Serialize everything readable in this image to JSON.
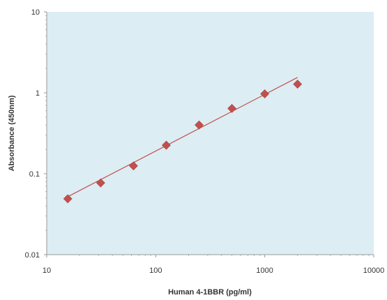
{
  "chart_data": {
    "type": "scatter",
    "title": "",
    "xlabel": "Human 4-1BBR (pg/ml)",
    "ylabel": "Absorbance (450nm)",
    "xscale": "log",
    "yscale": "log",
    "xlim": [
      10,
      10000
    ],
    "ylim": [
      0.01,
      10
    ],
    "x_tick_labels": [
      "10",
      "100",
      "1000",
      "10000"
    ],
    "y_tick_labels": [
      "0.01",
      "0.1",
      "1",
      "10"
    ],
    "grid": false,
    "legend": "none",
    "series": [
      {
        "marker": "diamond",
        "x": [
          15.6,
          31.25,
          62.5,
          125,
          250,
          500,
          1000,
          2000
        ],
        "y": [
          0.049,
          0.077,
          0.125,
          0.225,
          0.4,
          0.64,
          0.97,
          1.28
        ]
      }
    ],
    "trendline": {
      "x": [
        15.6,
        2000
      ],
      "y": [
        0.052,
        1.55
      ]
    },
    "colors": {
      "plot_background": "#dcedf4",
      "marker": "#c0504d",
      "trendline": "#c0504d",
      "axis": "#9a9a9a"
    }
  }
}
